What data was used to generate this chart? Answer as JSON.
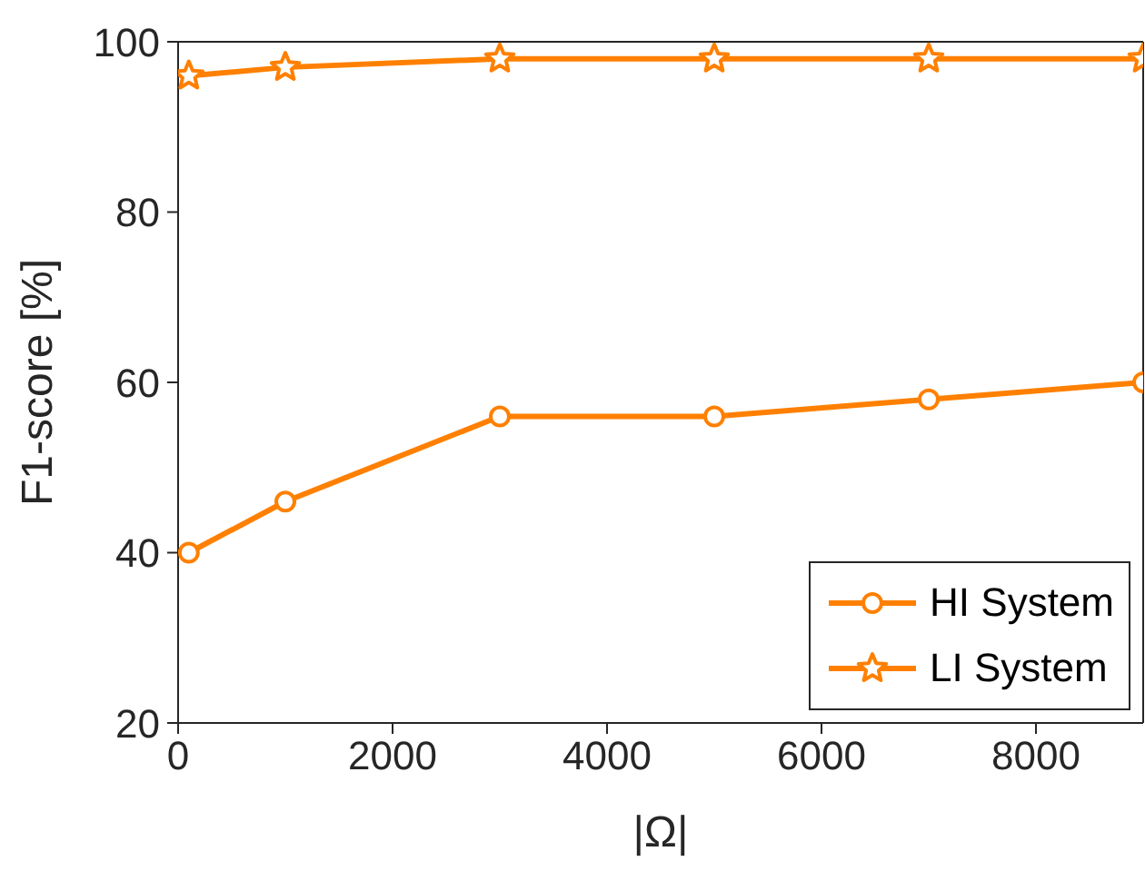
{
  "chart_data": {
    "type": "line",
    "xlabel": "|Ω|",
    "ylabel": "F1-score [%]",
    "x": [
      100,
      1000,
      3000,
      5000,
      7000,
      9000
    ],
    "series": [
      {
        "name": "HI System",
        "color": "#ff8000",
        "marker": "circle",
        "values": [
          40,
          46,
          56,
          56,
          58,
          60
        ]
      },
      {
        "name": "LI System",
        "color": "#ff8000",
        "marker": "star",
        "values": [
          96,
          97,
          98,
          98,
          98,
          98
        ]
      }
    ],
    "xlim": [
      0,
      9000
    ],
    "xticks": [
      0,
      2000,
      4000,
      6000,
      8000
    ],
    "ylim": [
      20,
      100
    ],
    "yticks": [
      20,
      40,
      60,
      80,
      100
    ],
    "grid": false,
    "legend": "bottom right",
    "line_style": "solid"
  }
}
